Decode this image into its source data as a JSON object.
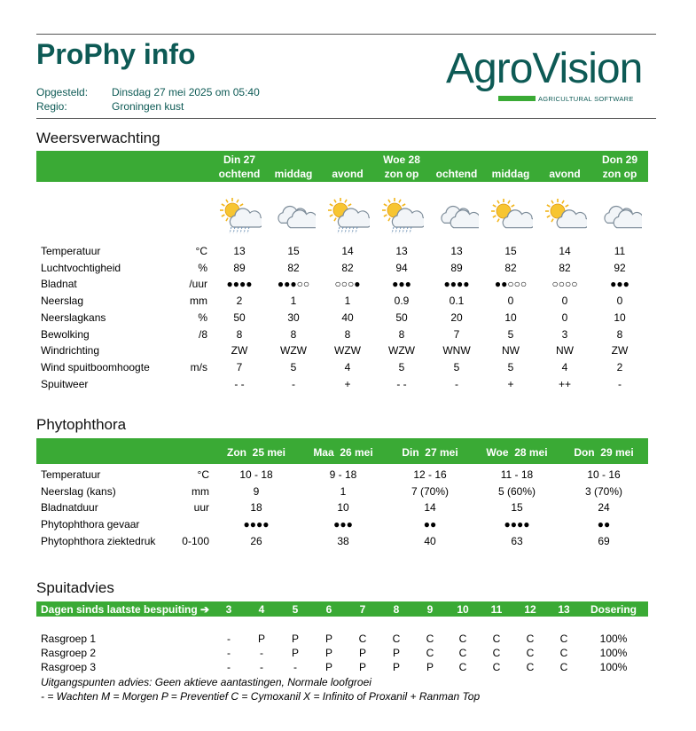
{
  "header": {
    "title": "ProPhy info",
    "opgesteld_label": "Opgesteld:",
    "opgesteld_value": "Dinsdag 27 mei 2025 om 05:40",
    "regio_label": "Regio:",
    "regio_value": "Groningen kust"
  },
  "logo": {
    "name": "AgroVision",
    "tagline": "AGRICULTURAL SOFTWARE",
    "bar_color": "#3aaa35",
    "text_color": "#0d5a55"
  },
  "weer": {
    "section_title": "Weersverwachting",
    "columns": [
      {
        "day": "Din 27",
        "part": "ochtend",
        "icon": "sun-cloud-rain-icon"
      },
      {
        "day": "",
        "part": "middag",
        "icon": "cloud-icon"
      },
      {
        "day": "",
        "part": "avond",
        "icon": "sun-cloud-rain-icon"
      },
      {
        "day": "Woe 28",
        "part": "zon op",
        "icon": "sun-cloud-rain-icon"
      },
      {
        "day": "",
        "part": "ochtend",
        "icon": "cloud-icon"
      },
      {
        "day": "",
        "part": "middag",
        "icon": "sun-cloud-icon"
      },
      {
        "day": "",
        "part": "avond",
        "icon": "sun-cloud-icon"
      },
      {
        "day": "Don 29",
        "part": "zon op",
        "icon": "cloud-icon"
      }
    ],
    "rows": [
      {
        "label": "Temperatuur",
        "unit": "°C",
        "values": [
          "13",
          "15",
          "14",
          "13",
          "13",
          "15",
          "14",
          "11"
        ]
      },
      {
        "label": "Luchtvochtigheid",
        "unit": "%",
        "values": [
          "89",
          "82",
          "82",
          "94",
          "89",
          "82",
          "82",
          "92"
        ]
      },
      {
        "label": "Bladnat",
        "unit": "/uur",
        "values": [
          "●●●●",
          "●●●○○",
          "○○○●",
          "●●●",
          "●●●●",
          "●●○○○",
          "○○○○",
          "●●●"
        ]
      },
      {
        "label": "Neerslag",
        "unit": "mm",
        "values": [
          "2",
          "1",
          "1",
          "0.9",
          "0.1",
          "0",
          "0",
          "0"
        ]
      },
      {
        "label": "Neerslagkans",
        "unit": "%",
        "values": [
          "50",
          "30",
          "40",
          "50",
          "20",
          "10",
          "0",
          "10"
        ]
      },
      {
        "label": "Bewolking",
        "unit": "/8",
        "values": [
          "8",
          "8",
          "8",
          "8",
          "7",
          "5",
          "3",
          "8"
        ]
      },
      {
        "label": "Windrichting",
        "unit": "",
        "values": [
          "ZW",
          "WZW",
          "WZW",
          "WZW",
          "WNW",
          "NW",
          "NW",
          "ZW"
        ]
      },
      {
        "label": "Wind spuitboomhoogte",
        "unit": "m/s",
        "values": [
          "7",
          "5",
          "4",
          "5",
          "5",
          "5",
          "4",
          "2"
        ]
      },
      {
        "label": "Spuitweer",
        "unit": "",
        "values": [
          "- -",
          "-",
          "+",
          "- -",
          "-",
          "+",
          "++",
          "-"
        ]
      }
    ]
  },
  "phyto": {
    "section_title": "Phytophthora",
    "columns": [
      "Zon  25 mei",
      "Maa  26 mei",
      "Din  27 mei",
      "Woe  28 mei",
      "Don  29 mei"
    ],
    "rows": [
      {
        "label": "Temperatuur",
        "unit": "°C",
        "values": [
          "10 - 18",
          "9 - 18",
          "12 - 16",
          "11 - 18",
          "10 - 16"
        ]
      },
      {
        "label": "Neerslag (kans)",
        "unit": "mm",
        "values": [
          "9",
          "1",
          "7 (70%)",
          "5 (60%)",
          "3 (70%)"
        ]
      },
      {
        "label": "Bladnatduur",
        "unit": "uur",
        "values": [
          "18",
          "10",
          "14",
          "15",
          "24"
        ]
      },
      {
        "label": "Phytophthora gevaar",
        "unit": "",
        "values": [
          "●●●●",
          "●●●",
          "●●",
          "●●●●",
          "●●"
        ]
      },
      {
        "label": "Phytophthora ziektedruk",
        "unit": "0-100",
        "values": [
          "26",
          "38",
          "40",
          "63",
          "69"
        ]
      }
    ]
  },
  "spuit": {
    "section_title": "Spuitadvies",
    "header_label": "Dagen sinds laatste bespuiting ➔",
    "days": [
      "3",
      "4",
      "5",
      "6",
      "7",
      "8",
      "9",
      "10",
      "11",
      "12",
      "13"
    ],
    "dosering_label": "Dosering",
    "rows": [
      {
        "label": "Rasgroep 1",
        "values": [
          "-",
          "P",
          "P",
          "P",
          "C",
          "C",
          "C",
          "C",
          "C",
          "C",
          "C"
        ],
        "dosering": "100%"
      },
      {
        "label": "Rasgroep 2",
        "values": [
          "-",
          "-",
          "P",
          "P",
          "P",
          "P",
          "C",
          "C",
          "C",
          "C",
          "C"
        ],
        "dosering": "100%"
      },
      {
        "label": "Rasgroep 3",
        "values": [
          "-",
          "-",
          "-",
          "P",
          "P",
          "P",
          "P",
          "C",
          "C",
          "C",
          "C"
        ],
        "dosering": "100%"
      }
    ],
    "footnote_1": "Uitgangspunten advies: Geen aktieve aantastingen, Normale loofgroei",
    "footnote_2": "-  = Wachten     M = Morgen     P = Preventief     C = Cymoxanil     X = Infinito of Proxanil + Ranman Top"
  }
}
